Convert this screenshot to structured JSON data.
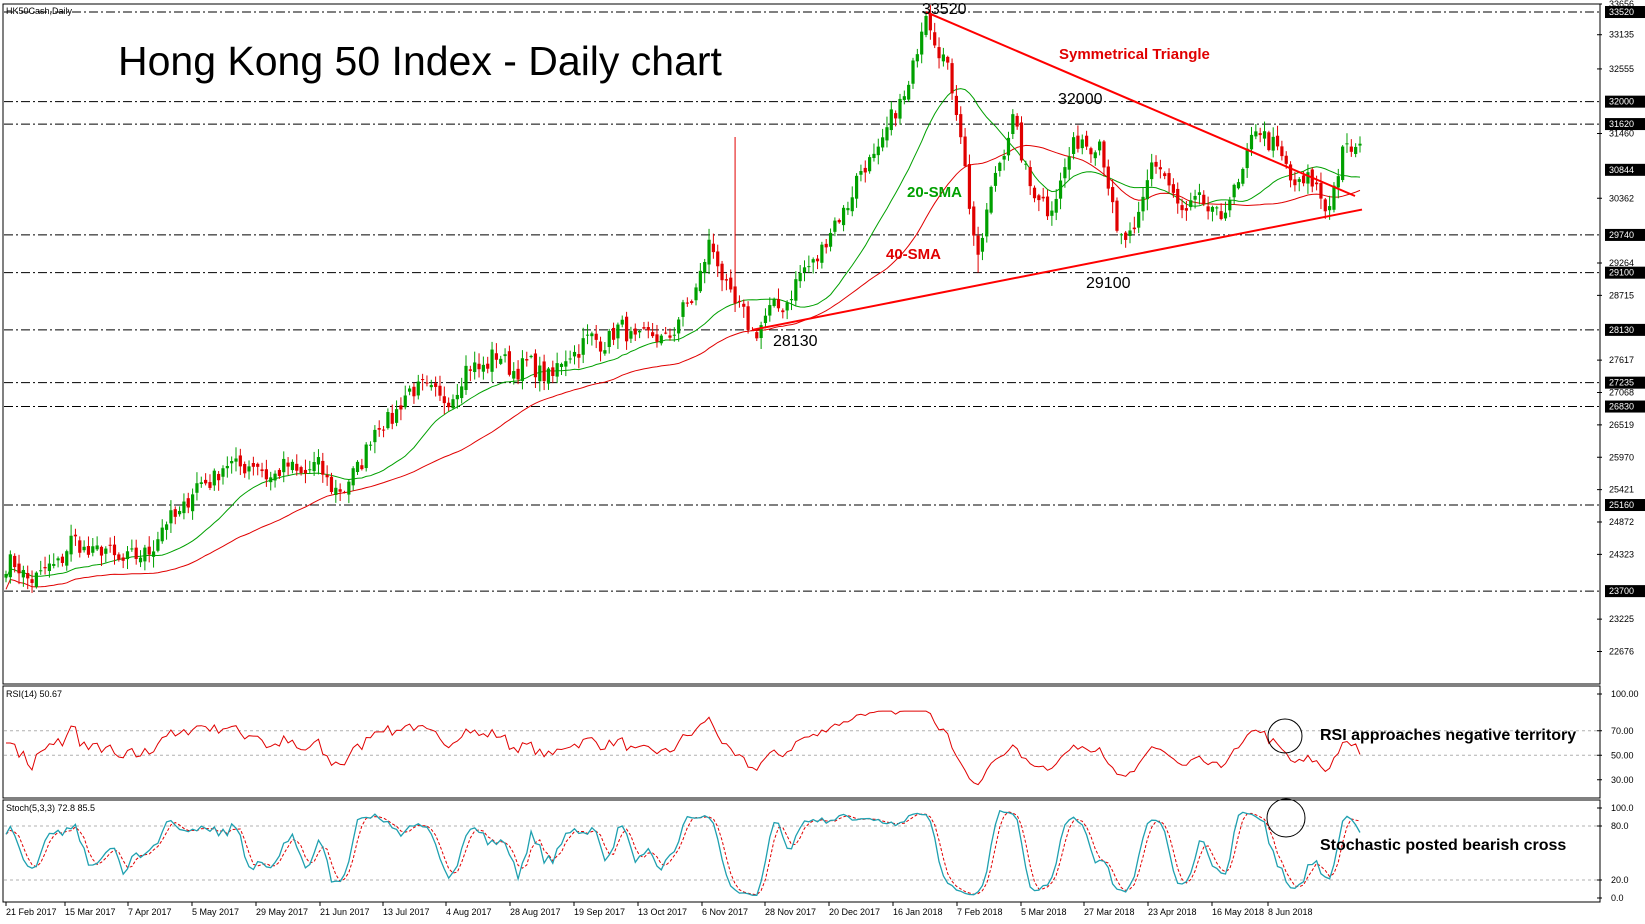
{
  "window": {
    "symbol_label": "HK50Cash,Daily"
  },
  "chart_data": {
    "type": "candlestick",
    "title": "Hong Kong 50 Index - Daily chart",
    "x_date_labels": [
      "21 Feb 2017",
      "15 Mar 2017",
      "7 Apr 2017",
      "5 May 2017",
      "29 May 2017",
      "21 Jun 2017",
      "13 Jul 2017",
      "4 Aug 2017",
      "28 Aug 2017",
      "19 Sep 2017",
      "13 Oct 2017",
      "6 Nov 2017",
      "28 Nov 2017",
      "20 Dec 2017",
      "16 Jan 2018",
      "7 Feb 2018",
      "5 Mar 2018",
      "27 Mar 2018",
      "23 Apr 2018",
      "16 May 2018",
      "8 Jun 2018"
    ],
    "y_ticks": [
      "33656",
      "33135",
      "32555",
      "31460",
      "30362",
      "29264",
      "28715",
      "27617",
      "27068",
      "26519",
      "25970",
      "25421",
      "24872",
      "24323",
      "23225",
      "22676"
    ],
    "ylim": [
      22125,
      33656
    ],
    "highlighted_levels": [
      {
        "value": "33520",
        "style": "dash-dot"
      },
      {
        "value": "32000",
        "style": "dash-dot"
      },
      {
        "value": "31620",
        "style": "dash-dot"
      },
      {
        "value": "30844",
        "style": "none"
      },
      {
        "value": "29740",
        "style": "dash-dot"
      },
      {
        "value": "29100",
        "style": "dash-dot"
      },
      {
        "value": "28130",
        "style": "dash-dot"
      },
      {
        "value": "27235",
        "style": "dash-dot"
      },
      {
        "value": "26830",
        "style": "dash-dot"
      },
      {
        "value": "25160",
        "style": "dash-dot"
      },
      {
        "value": "23700",
        "style": "dash-dot"
      }
    ],
    "annotations": {
      "peak": "33520",
      "high_feb": "32000",
      "low_nov": "28130",
      "low_mar": "29100",
      "pattern": "Symmetrical Triangle",
      "sma20": "20-SMA",
      "sma40": "40-SMA"
    },
    "price_anchors": [
      [
        0,
        24150
      ],
      [
        8,
        23900
      ],
      [
        15,
        24500
      ],
      [
        22,
        24350
      ],
      [
        30,
        24200
      ],
      [
        38,
        24900
      ],
      [
        46,
        25600
      ],
      [
        54,
        25900
      ],
      [
        60,
        25700
      ],
      [
        66,
        25750
      ],
      [
        72,
        25750
      ],
      [
        78,
        25350
      ],
      [
        84,
        26300
      ],
      [
        90,
        26800
      ],
      [
        96,
        27250
      ],
      [
        100,
        26850
      ],
      [
        106,
        27400
      ],
      [
        112,
        27650
      ],
      [
        118,
        27500
      ],
      [
        124,
        27450
      ],
      [
        126,
        27300
      ],
      [
        130,
        27800
      ],
      [
        136,
        27950
      ],
      [
        142,
        28100
      ],
      [
        148,
        27950
      ],
      [
        154,
        28100
      ],
      [
        158,
        28700
      ],
      [
        162,
        29500
      ],
      [
        164,
        29300
      ],
      [
        168,
        28500
      ],
      [
        172,
        28130
      ],
      [
        178,
        28500
      ],
      [
        184,
        29100
      ],
      [
        190,
        29750
      ],
      [
        196,
        30650
      ],
      [
        202,
        31300
      ],
      [
        208,
        32300
      ],
      [
        212,
        33520
      ],
      [
        216,
        32800
      ],
      [
        220,
        31500
      ],
      [
        224,
        29200
      ],
      [
        228,
        30900
      ],
      [
        232,
        31600
      ],
      [
        236,
        30650
      ],
      [
        240,
        30100
      ],
      [
        244,
        30900
      ],
      [
        248,
        31400
      ],
      [
        252,
        31300
      ],
      [
        256,
        29800
      ],
      [
        260,
        29600
      ],
      [
        264,
        31100
      ],
      [
        268,
        30500
      ],
      [
        272,
        30100
      ],
      [
        276,
        30300
      ],
      [
        280,
        30000
      ],
      [
        284,
        30650
      ],
      [
        288,
        31500
      ],
      [
        292,
        31350
      ],
      [
        296,
        30600
      ],
      [
        300,
        30700
      ],
      [
        304,
        30200
      ],
      [
        308,
        31050
      ],
      [
        312,
        31250
      ]
    ],
    "sma20_label_color": "#00a000",
    "sma40_label_color": "#e00000",
    "rsi": {
      "label": "RSI(14) 50.67",
      "ylim": [
        20,
        100
      ],
      "ticks": [
        "100.00",
        "70.00",
        "50.00",
        "30.00"
      ],
      "annotation": "RSI approaches negative territory"
    },
    "stochastic": {
      "label": "Stoch(5,3,3) 72.8 85.5",
      "ylim": [
        0,
        100
      ],
      "ticks": [
        "100.0",
        "80.0",
        "20.0",
        "0.0"
      ],
      "annotation": "Stochastic posted bearish cross"
    }
  },
  "colors": {
    "bull": "#00a000",
    "bear": "#e00000",
    "sma20": "#00a000",
    "sma40": "#e00000",
    "trendline": "#ff0000",
    "rsi": "#e00000",
    "stoch_main": "#1fa0b0",
    "stoch_signal": "#e00000",
    "highlight_tag": "#000000"
  }
}
